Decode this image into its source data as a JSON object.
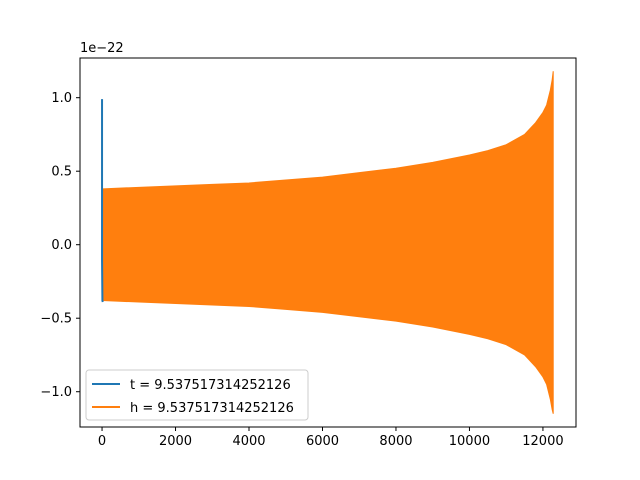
{
  "chart_data": {
    "type": "line",
    "title": "",
    "xlabel": "",
    "ylabel": "",
    "offset_label": "1e−22",
    "xlim": [
      -600,
      12900
    ],
    "ylim": [
      -1.24,
      1.27
    ],
    "x_ticks": [
      0,
      2000,
      4000,
      6000,
      8000,
      10000,
      12000
    ],
    "x_tick_labels": [
      "0",
      "2000",
      "4000",
      "6000",
      "8000",
      "10000",
      "12000"
    ],
    "y_ticks": [
      1.0,
      0.5,
      0.0,
      -0.5,
      -1.0
    ],
    "y_tick_labels": [
      "1.0",
      "0.5",
      "0.0",
      "−0.5",
      "−1.0"
    ],
    "grid": false,
    "legend_position": "lower-left",
    "series": [
      {
        "name": "t = 9.537517314252126",
        "color": "#1f77b4",
        "description_values": {
          "x": [
            0,
            0,
            10,
            20
          ],
          "y": [
            0.99,
            -0.1,
            -0.38,
            -0.39
          ]
        }
      },
      {
        "name": "h = 9.537517314252126",
        "color": "#ff7f0e",
        "envelope": {
          "x": [
            20,
            1000,
            2000,
            3000,
            4000,
            5000,
            6000,
            7000,
            8000,
            9000,
            10000,
            10500,
            11000,
            11500,
            11800,
            12000,
            12100,
            12200,
            12250,
            12280
          ],
          "upper": [
            0.38,
            0.39,
            0.4,
            0.41,
            0.42,
            0.44,
            0.46,
            0.49,
            0.52,
            0.56,
            0.61,
            0.64,
            0.68,
            0.75,
            0.83,
            0.9,
            0.95,
            1.05,
            1.12,
            1.18
          ],
          "lower": [
            -0.38,
            -0.39,
            -0.4,
            -0.41,
            -0.42,
            -0.44,
            -0.46,
            -0.49,
            -0.52,
            -0.56,
            -0.61,
            -0.64,
            -0.68,
            -0.75,
            -0.83,
            -0.9,
            -0.95,
            -1.05,
            -1.12,
            -1.15
          ]
        }
      }
    ]
  }
}
